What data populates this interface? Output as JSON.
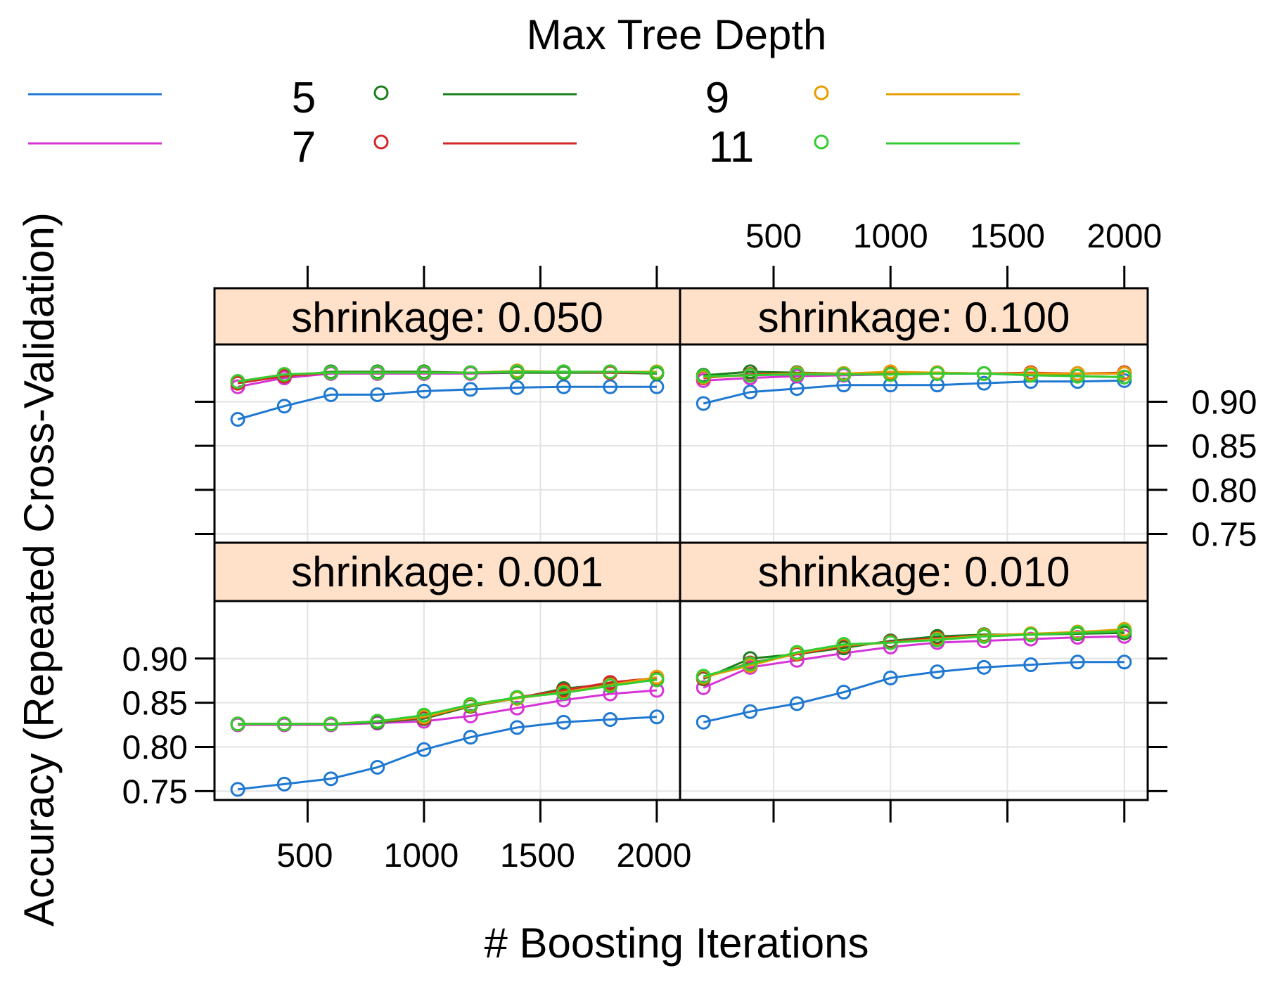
{
  "chart_data": {
    "type": "line",
    "layout": "lattice-2x2",
    "title": "",
    "xlabel": "# Boosting Iterations",
    "ylabel": "Accuracy (Repeated Cross-Validation)",
    "xlim": [
      100,
      2100
    ],
    "ylim": [
      0.74,
      0.965
    ],
    "x_ticks": [
      500,
      1000,
      1500,
      2000
    ],
    "x_tick_labels": [
      "500",
      "1000",
      "1500",
      "2000"
    ],
    "y_ticks": [
      0.75,
      0.8,
      0.85,
      0.9
    ],
    "y_tick_labels": [
      "0.75",
      "0.80",
      "0.85",
      "0.90"
    ],
    "grid": true,
    "x": [
      200,
      400,
      600,
      800,
      1000,
      1200,
      1400,
      1600,
      1800,
      2000
    ],
    "legend": {
      "title": "Max Tree Depth",
      "placement": "top",
      "entries": [
        {
          "label": "5",
          "key": "d5"
        },
        {
          "label": "7",
          "key": "d7"
        },
        {
          "label": "9",
          "key": "d9"
        },
        {
          "label": "11",
          "key": "d11"
        }
      ],
      "line_only_keys": [
        "blue",
        "magenta"
      ]
    },
    "colors": {
      "blue": "#1f78d1",
      "magenta": "#d633d6",
      "d5": "#1a7f1a",
      "d7": "#d62728",
      "d9": "#e69f00",
      "d11": "#33cc33",
      "strip_fill": "#ffe0c8",
      "grid": "#e3e3e3"
    },
    "panels": [
      {
        "strip": "shrinkage: 0.050",
        "row": "top",
        "col": "left",
        "series": [
          {
            "color_key": "blue",
            "values": [
              0.88,
              0.895,
              0.908,
              0.908,
              0.912,
              0.914,
              0.916,
              0.917,
              0.917,
              0.917
            ]
          },
          {
            "color_key": "magenta",
            "values": [
              0.917,
              0.927,
              0.932,
              0.932,
              0.932,
              0.932,
              0.933,
              0.933,
              0.933,
              0.933
            ]
          },
          {
            "color_key": "d5",
            "values": [
              0.922,
              0.929,
              0.934,
              0.934,
              0.934,
              0.933,
              0.933,
              0.933,
              0.933,
              0.932
            ]
          },
          {
            "color_key": "d7",
            "values": [
              0.921,
              0.929,
              0.933,
              0.933,
              0.933,
              0.933,
              0.934,
              0.934,
              0.933,
              0.933
            ]
          },
          {
            "color_key": "d9",
            "values": [
              0.923,
              0.931,
              0.933,
              0.933,
              0.933,
              0.933,
              0.935,
              0.934,
              0.934,
              0.934
            ]
          },
          {
            "color_key": "d11",
            "values": [
              0.923,
              0.931,
              0.933,
              0.933,
              0.933,
              0.933,
              0.934,
              0.934,
              0.934,
              0.933
            ]
          }
        ]
      },
      {
        "strip": "shrinkage: 0.100",
        "row": "top",
        "col": "right",
        "series": [
          {
            "color_key": "blue",
            "values": [
              0.898,
              0.911,
              0.915,
              0.919,
              0.919,
              0.919,
              0.921,
              0.923,
              0.923,
              0.924
            ]
          },
          {
            "color_key": "magenta",
            "values": [
              0.924,
              0.927,
              0.929,
              0.93,
              0.931,
              0.932,
              0.932,
              0.932,
              0.932,
              0.932
            ]
          },
          {
            "color_key": "d5",
            "values": [
              0.93,
              0.934,
              0.933,
              0.932,
              0.932,
              0.932,
              0.932,
              0.932,
              0.929,
              0.928
            ]
          },
          {
            "color_key": "d7",
            "values": [
              0.927,
              0.931,
              0.932,
              0.932,
              0.933,
              0.933,
              0.932,
              0.933,
              0.932,
              0.933
            ]
          },
          {
            "color_key": "d9",
            "values": [
              0.928,
              0.93,
              0.932,
              0.932,
              0.934,
              0.933,
              0.932,
              0.932,
              0.932,
              0.932
            ]
          },
          {
            "color_key": "d11",
            "values": [
              0.929,
              0.93,
              0.931,
              0.931,
              0.931,
              0.932,
              0.932,
              0.93,
              0.929,
              0.928
            ]
          }
        ]
      },
      {
        "strip": "shrinkage: 0.001",
        "row": "bottom",
        "col": "left",
        "series": [
          {
            "color_key": "blue",
            "values": [
              0.752,
              0.758,
              0.764,
              0.777,
              0.797,
              0.811,
              0.822,
              0.828,
              0.831,
              0.834
            ]
          },
          {
            "color_key": "magenta",
            "values": [
              0.825,
              0.825,
              0.825,
              0.827,
              0.829,
              0.835,
              0.844,
              0.853,
              0.86,
              0.864
            ]
          },
          {
            "color_key": "d5",
            "values": [
              0.826,
              0.826,
              0.826,
              0.828,
              0.832,
              0.846,
              0.855,
              0.866,
              0.871,
              0.876
            ]
          },
          {
            "color_key": "d7",
            "values": [
              0.826,
              0.826,
              0.826,
              0.829,
              0.833,
              0.847,
              0.856,
              0.864,
              0.873,
              0.878
            ]
          },
          {
            "color_key": "d9",
            "values": [
              0.826,
              0.826,
              0.826,
              0.829,
              0.834,
              0.847,
              0.855,
              0.862,
              0.87,
              0.879
            ]
          },
          {
            "color_key": "d11",
            "values": [
              0.826,
              0.826,
              0.826,
              0.829,
              0.836,
              0.848,
              0.856,
              0.861,
              0.869,
              0.876
            ]
          }
        ]
      },
      {
        "strip": "shrinkage: 0.010",
        "row": "bottom",
        "col": "right",
        "series": [
          {
            "color_key": "blue",
            "values": [
              0.828,
              0.84,
              0.849,
              0.862,
              0.878,
              0.885,
              0.89,
              0.893,
              0.896,
              0.896
            ]
          },
          {
            "color_key": "magenta",
            "values": [
              0.867,
              0.89,
              0.898,
              0.906,
              0.913,
              0.918,
              0.92,
              0.922,
              0.924,
              0.925
            ]
          },
          {
            "color_key": "d5",
            "values": [
              0.877,
              0.9,
              0.905,
              0.912,
              0.92,
              0.925,
              0.927,
              0.927,
              0.928,
              0.929
            ]
          },
          {
            "color_key": "d7",
            "values": [
              0.878,
              0.895,
              0.905,
              0.914,
              0.919,
              0.923,
              0.926,
              0.928,
              0.929,
              0.931
            ]
          },
          {
            "color_key": "d9",
            "values": [
              0.879,
              0.892,
              0.906,
              0.915,
              0.918,
              0.922,
              0.926,
              0.928,
              0.93,
              0.933
            ]
          },
          {
            "color_key": "d11",
            "values": [
              0.88,
              0.894,
              0.907,
              0.916,
              0.918,
              0.921,
              0.925,
              0.927,
              0.929,
              0.931
            ]
          }
        ]
      }
    ]
  }
}
